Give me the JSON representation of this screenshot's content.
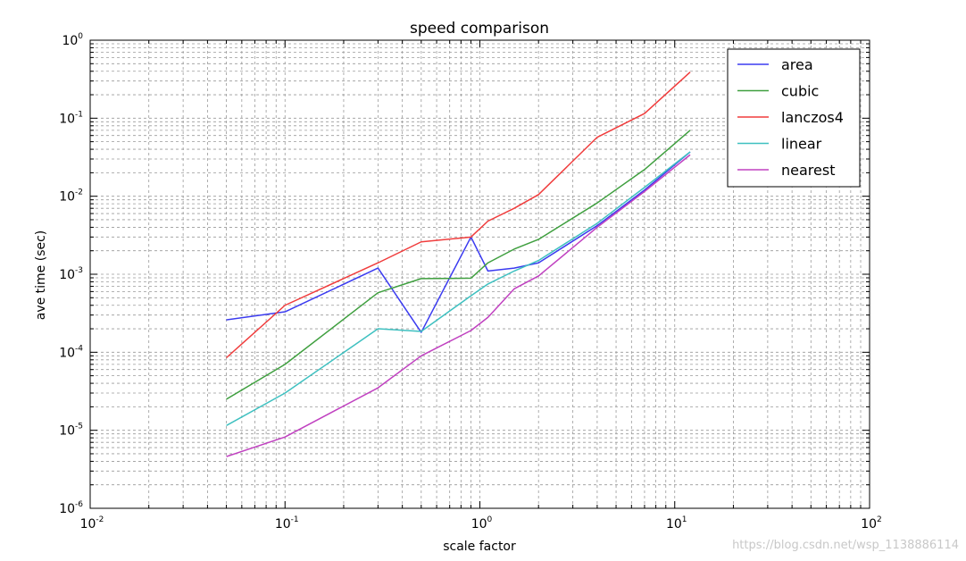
{
  "chart_data": {
    "type": "line",
    "title": "speed comparison",
    "xlabel": "scale factor",
    "ylabel": "ave time (sec)",
    "xscale": "log",
    "yscale": "log",
    "xlim": [
      0.01,
      100
    ],
    "ylim": [
      1e-06,
      1
    ],
    "grid": true,
    "legend_position": "top-right",
    "x_ticks": [
      {
        "base": "10",
        "exp": "-2"
      },
      {
        "base": "10",
        "exp": "-1"
      },
      {
        "base": "10",
        "exp": "0"
      },
      {
        "base": "10",
        "exp": "1"
      },
      {
        "base": "10",
        "exp": "2"
      }
    ],
    "y_ticks": [
      {
        "base": "10",
        "exp": "-6"
      },
      {
        "base": "10",
        "exp": "-5"
      },
      {
        "base": "10",
        "exp": "-4"
      },
      {
        "base": "10",
        "exp": "-3"
      },
      {
        "base": "10",
        "exp": "-2"
      },
      {
        "base": "10",
        "exp": "-1"
      },
      {
        "base": "10",
        "exp": "0"
      }
    ],
    "series": [
      {
        "name": "area",
        "color": "#3b3bf0",
        "x": [
          0.05,
          0.1,
          0.3,
          0.5,
          0.9,
          1.1,
          1.5,
          2,
          4,
          7,
          12
        ],
        "y": [
          0.00026,
          0.00033,
          0.0012,
          0.00018,
          0.003,
          0.0011,
          0.0012,
          0.0014,
          0.0042,
          0.012,
          0.037
        ]
      },
      {
        "name": "cubic",
        "color": "#3f9f3f",
        "x": [
          0.05,
          0.1,
          0.3,
          0.5,
          0.9,
          1.1,
          1.5,
          2,
          4,
          7,
          12
        ],
        "y": [
          2.5e-05,
          7e-05,
          0.00058,
          0.00088,
          0.00089,
          0.0014,
          0.0021,
          0.0028,
          0.0082,
          0.022,
          0.07
        ]
      },
      {
        "name": "lanczos4",
        "color": "#f03c3c",
        "x": [
          0.05,
          0.1,
          0.3,
          0.5,
          0.9,
          1.1,
          1.5,
          2,
          4,
          7,
          12
        ],
        "y": [
          8.5e-05,
          0.0004,
          0.0014,
          0.0026,
          0.003,
          0.0048,
          0.007,
          0.0105,
          0.057,
          0.115,
          0.39
        ]
      },
      {
        "name": "linear",
        "color": "#3ec0c0",
        "x": [
          0.05,
          0.1,
          0.3,
          0.5,
          0.9,
          1.1,
          1.5,
          2,
          4,
          7,
          12
        ],
        "y": [
          1.15e-05,
          3e-05,
          0.0002,
          0.000185,
          0.00053,
          0.00075,
          0.0011,
          0.0015,
          0.0045,
          0.013,
          0.037
        ]
      },
      {
        "name": "nearest",
        "color": "#c040c0",
        "x": [
          0.05,
          0.1,
          0.3,
          0.5,
          0.9,
          1.1,
          1.5,
          2,
          4,
          7,
          12
        ],
        "y": [
          4.6e-06,
          8.2e-06,
          3.5e-05,
          9e-05,
          0.00019,
          0.00028,
          0.00065,
          0.00095,
          0.004,
          0.0115,
          0.034
        ]
      }
    ]
  },
  "watermark": "https://blog.csdn.net/wsp_1138886114"
}
